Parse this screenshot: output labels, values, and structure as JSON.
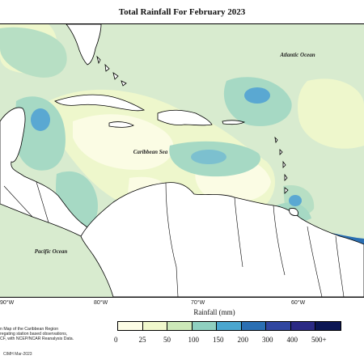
{
  "title": "Total Rainfall For February 2023",
  "labels": {
    "atlantic": "Atlantic Ocean",
    "caribbean": "Caribbean Sea",
    "pacific": "Pacific Ocean"
  },
  "longitudes": [
    "90°W",
    "80°W",
    "70°W",
    "60°W"
  ],
  "legend": {
    "title": "Rainfall (mm)",
    "ticks": [
      "0",
      "25",
      "50",
      "100",
      "150",
      "200",
      "300",
      "400",
      "500+"
    ],
    "colors": [
      "#fdfde6",
      "#f0f8cc",
      "#cce8b8",
      "#8fd0c0",
      "#4aa6cf",
      "#2a6fb3",
      "#3046a0",
      "#2b2a85",
      "#0b1654"
    ]
  },
  "note": {
    "line1": "n Map of the Caribbean Region",
    "line2": "regating station based observations,",
    "line3": "CF, with NCEP/NCAR Reanalysis Data."
  },
  "copyright": "CIMH Mar-2023",
  "colors": {
    "land": "#ffffff",
    "coast": "#000000",
    "background": "#d8ebcf"
  }
}
